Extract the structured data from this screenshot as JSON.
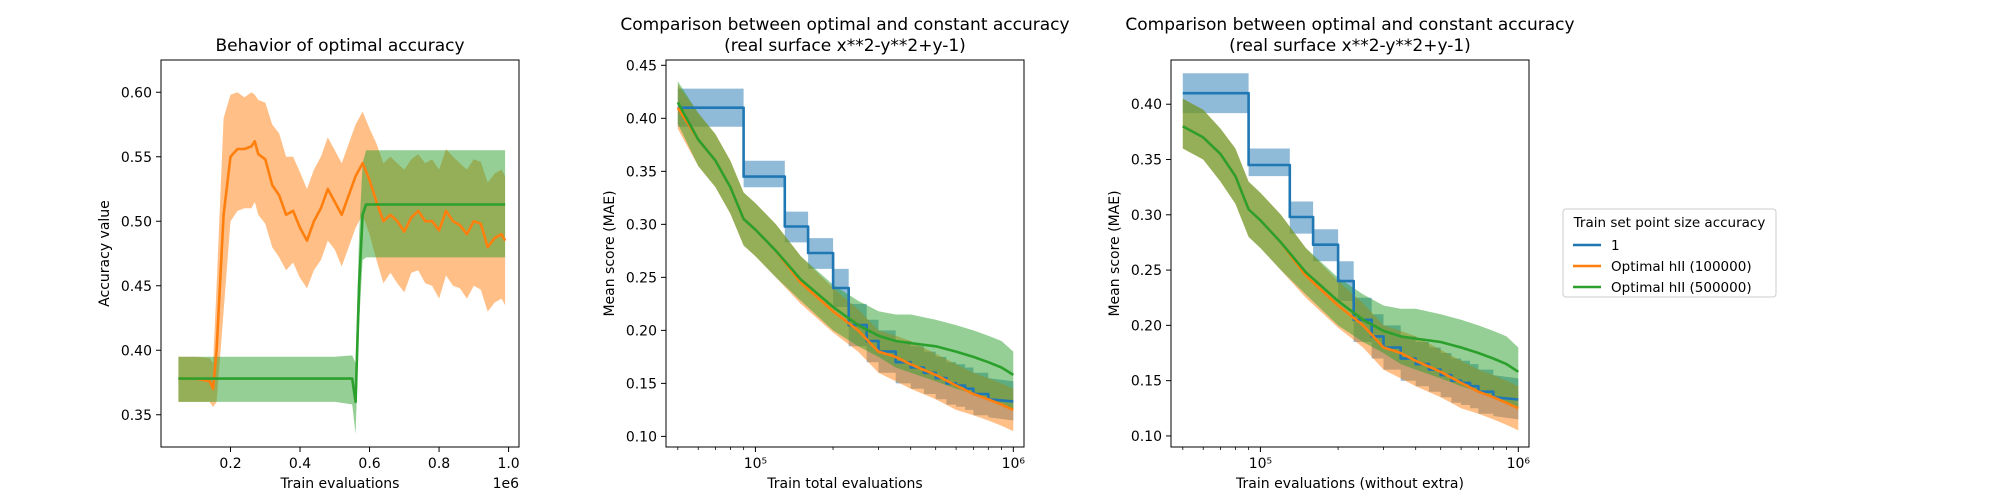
{
  "colors": {
    "series1": "#1f77b4",
    "series2": "#ff7f0e",
    "series3": "#2ca02c"
  },
  "legend": {
    "title": "Train set point size accuracy",
    "entries": [
      "1",
      "Optimal hII (100000)",
      "Optimal hII (500000)"
    ],
    "placement": "right of figure"
  },
  "chart_data": [
    {
      "type": "line",
      "title": "Behavior of optimal accuracy",
      "xlabel": "Train evaluations",
      "ylabel": "Accuracy value",
      "x_offset_label": "1e6",
      "x_scale": "linear",
      "xlim": [
        0.0,
        1.03
      ],
      "ylim": [
        0.325,
        0.625
      ],
      "x_ticks": [
        0.2,
        0.4,
        0.6,
        0.8,
        1.0
      ],
      "x_tick_labels": [
        "0.2",
        "0.4",
        "0.6",
        "0.8",
        "1.0"
      ],
      "y_ticks": [
        0.35,
        0.4,
        0.45,
        0.5,
        0.55,
        0.6
      ],
      "y_tick_labels": [
        "0.35",
        "0.40",
        "0.45",
        "0.50",
        "0.55",
        "0.60"
      ],
      "series": [
        {
          "name": "Optimal hII (100000)",
          "color": "#ff7f0e",
          "x": [
            0.05,
            0.1,
            0.14,
            0.15,
            0.16,
            0.18,
            0.2,
            0.22,
            0.24,
            0.26,
            0.27,
            0.28,
            0.3,
            0.32,
            0.34,
            0.36,
            0.38,
            0.4,
            0.42,
            0.44,
            0.46,
            0.48,
            0.5,
            0.52,
            0.54,
            0.56,
            0.58,
            0.6,
            0.62,
            0.64,
            0.66,
            0.68,
            0.7,
            0.72,
            0.74,
            0.76,
            0.78,
            0.8,
            0.82,
            0.84,
            0.86,
            0.88,
            0.9,
            0.92,
            0.94,
            0.96,
            0.98,
            0.99
          ],
          "y": [
            0.378,
            0.378,
            0.376,
            0.37,
            0.4,
            0.505,
            0.55,
            0.556,
            0.556,
            0.558,
            0.562,
            0.552,
            0.548,
            0.528,
            0.52,
            0.505,
            0.508,
            0.495,
            0.485,
            0.5,
            0.51,
            0.525,
            0.515,
            0.505,
            0.52,
            0.535,
            0.545,
            0.532,
            0.515,
            0.5,
            0.505,
            0.5,
            0.492,
            0.503,
            0.508,
            0.5,
            0.5,
            0.493,
            0.508,
            0.5,
            0.497,
            0.49,
            0.5,
            0.498,
            0.48,
            0.487,
            0.49,
            0.485
          ],
          "lower": [
            0.36,
            0.36,
            0.36,
            0.356,
            0.36,
            0.43,
            0.5,
            0.508,
            0.51,
            0.51,
            0.515,
            0.505,
            0.498,
            0.48,
            0.472,
            0.462,
            0.468,
            0.456,
            0.448,
            0.462,
            0.47,
            0.485,
            0.478,
            0.465,
            0.48,
            0.495,
            0.505,
            0.49,
            0.47,
            0.452,
            0.46,
            0.452,
            0.445,
            0.46,
            0.462,
            0.452,
            0.45,
            0.44,
            0.458,
            0.45,
            0.448,
            0.44,
            0.45,
            0.447,
            0.43,
            0.437,
            0.44,
            0.435
          ],
          "upper": [
            0.395,
            0.395,
            0.394,
            0.39,
            0.45,
            0.58,
            0.598,
            0.6,
            0.596,
            0.6,
            0.598,
            0.594,
            0.592,
            0.575,
            0.568,
            0.55,
            0.55,
            0.538,
            0.525,
            0.54,
            0.55,
            0.565,
            0.555,
            0.545,
            0.56,
            0.575,
            0.585,
            0.572,
            0.56,
            0.545,
            0.55,
            0.545,
            0.54,
            0.548,
            0.552,
            0.545,
            0.548,
            0.54,
            0.556,
            0.55,
            0.545,
            0.54,
            0.548,
            0.546,
            0.53,
            0.537,
            0.54,
            0.535
          ]
        },
        {
          "name": "Optimal hII (500000)",
          "color": "#2ca02c",
          "x": [
            0.05,
            0.1,
            0.2,
            0.3,
            0.4,
            0.5,
            0.55,
            0.56,
            0.57,
            0.58,
            0.59,
            0.6,
            0.7,
            0.8,
            0.9,
            0.99
          ],
          "y": [
            0.378,
            0.378,
            0.378,
            0.378,
            0.378,
            0.378,
            0.378,
            0.36,
            0.45,
            0.505,
            0.513,
            0.513,
            0.513,
            0.513,
            0.513,
            0.513
          ],
          "lower": [
            0.36,
            0.36,
            0.36,
            0.36,
            0.36,
            0.36,
            0.358,
            0.335,
            0.42,
            0.47,
            0.472,
            0.472,
            0.472,
            0.472,
            0.472,
            0.472
          ],
          "upper": [
            0.395,
            0.395,
            0.395,
            0.395,
            0.395,
            0.395,
            0.396,
            0.39,
            0.49,
            0.545,
            0.555,
            0.555,
            0.555,
            0.555,
            0.555,
            0.555
          ]
        }
      ]
    },
    {
      "type": "line",
      "title": "Comparison between optimal and constant accuracy\n(real surface x**2-y**2+y-1)",
      "xlabel": "Train total evaluations",
      "ylabel": "Mean score (MAE)",
      "x_scale": "log",
      "xlim": [
        45000,
        1100000
      ],
      "ylim": [
        0.09,
        0.455
      ],
      "x_ticks": [
        100000,
        1000000
      ],
      "x_tick_labels": [
        "10⁵",
        "10⁶"
      ],
      "y_ticks": [
        0.1,
        0.15,
        0.2,
        0.25,
        0.3,
        0.35,
        0.4,
        0.45
      ],
      "y_tick_labels": [
        "0.10",
        "0.15",
        "0.20",
        "0.25",
        "0.30",
        "0.35",
        "0.40",
        "0.45"
      ],
      "series": [
        {
          "name": "1",
          "color": "#1f77b4",
          "x": [
            50000,
            90000,
            90000,
            130000,
            130000,
            160000,
            160000,
            200000,
            200000,
            230000,
            230000,
            270000,
            270000,
            300000,
            300000,
            350000,
            350000,
            400000,
            400000,
            450000,
            450000,
            500000,
            500000,
            550000,
            550000,
            600000,
            600000,
            650000,
            650000,
            700000,
            700000,
            800000,
            800000,
            1000000
          ],
          "y": [
            0.41,
            0.41,
            0.345,
            0.345,
            0.298,
            0.298,
            0.273,
            0.273,
            0.24,
            0.24,
            0.205,
            0.205,
            0.19,
            0.19,
            0.18,
            0.18,
            0.17,
            0.17,
            0.165,
            0.165,
            0.16,
            0.16,
            0.155,
            0.155,
            0.15,
            0.15,
            0.148,
            0.148,
            0.145,
            0.145,
            0.14,
            0.14,
            0.135,
            0.133
          ],
          "lower": [
            0.392,
            0.392,
            0.335,
            0.335,
            0.283,
            0.283,
            0.258,
            0.258,
            0.222,
            0.222,
            0.185,
            0.185,
            0.17,
            0.17,
            0.16,
            0.16,
            0.15,
            0.15,
            0.145,
            0.145,
            0.14,
            0.14,
            0.135,
            0.135,
            0.13,
            0.13,
            0.128,
            0.128,
            0.125,
            0.125,
            0.12,
            0.12,
            0.118,
            0.115
          ],
          "upper": [
            0.428,
            0.428,
            0.36,
            0.36,
            0.312,
            0.312,
            0.287,
            0.287,
            0.258,
            0.258,
            0.225,
            0.225,
            0.21,
            0.21,
            0.2,
            0.2,
            0.19,
            0.19,
            0.185,
            0.185,
            0.18,
            0.18,
            0.175,
            0.175,
            0.17,
            0.17,
            0.168,
            0.168,
            0.165,
            0.165,
            0.16,
            0.16,
            0.155,
            0.152
          ]
        },
        {
          "name": "Optimal hII (100000)",
          "color": "#ff7f0e",
          "x": [
            50000,
            60000,
            70000,
            80000,
            90000,
            100000,
            120000,
            150000,
            200000,
            250000,
            300000,
            350000,
            400000,
            500000,
            600000,
            700000,
            800000,
            900000,
            1000000
          ],
          "y": [
            0.41,
            0.38,
            0.36,
            0.335,
            0.305,
            0.295,
            0.275,
            0.245,
            0.218,
            0.2,
            0.18,
            0.175,
            0.168,
            0.158,
            0.148,
            0.14,
            0.135,
            0.13,
            0.125
          ],
          "lower": [
            0.39,
            0.355,
            0.335,
            0.31,
            0.28,
            0.27,
            0.25,
            0.225,
            0.198,
            0.18,
            0.16,
            0.152,
            0.145,
            0.135,
            0.125,
            0.12,
            0.115,
            0.11,
            0.105
          ],
          "upper": [
            0.432,
            0.405,
            0.385,
            0.36,
            0.33,
            0.32,
            0.3,
            0.27,
            0.24,
            0.22,
            0.2,
            0.195,
            0.19,
            0.178,
            0.168,
            0.16,
            0.155,
            0.15,
            0.145
          ]
        },
        {
          "name": "Optimal hII (500000)",
          "color": "#2ca02c",
          "x": [
            50000,
            60000,
            70000,
            80000,
            90000,
            100000,
            120000,
            150000,
            200000,
            250000,
            300000,
            350000,
            400000,
            500000,
            600000,
            700000,
            800000,
            900000,
            1000000
          ],
          "y": [
            0.415,
            0.38,
            0.36,
            0.335,
            0.305,
            0.295,
            0.275,
            0.248,
            0.222,
            0.205,
            0.195,
            0.19,
            0.188,
            0.185,
            0.18,
            0.175,
            0.17,
            0.165,
            0.158
          ],
          "lower": [
            0.395,
            0.355,
            0.335,
            0.31,
            0.28,
            0.27,
            0.25,
            0.228,
            0.2,
            0.185,
            0.175,
            0.165,
            0.16,
            0.152,
            0.145,
            0.14,
            0.135,
            0.13,
            0.125
          ],
          "upper": [
            0.435,
            0.405,
            0.385,
            0.36,
            0.33,
            0.32,
            0.3,
            0.27,
            0.243,
            0.228,
            0.218,
            0.215,
            0.215,
            0.21,
            0.205,
            0.2,
            0.195,
            0.19,
            0.18
          ]
        }
      ]
    },
    {
      "type": "line",
      "title": "Comparison between optimal and constant accuracy\n(real surface x**2-y**2+y-1)",
      "xlabel": "Train evaluations (without extra)",
      "ylabel": "Mean score (MAE)",
      "x_scale": "log",
      "xlim": [
        45000,
        1100000
      ],
      "ylim": [
        0.09,
        0.44
      ],
      "x_ticks": [
        100000,
        1000000
      ],
      "x_tick_labels": [
        "10⁵",
        "10⁶"
      ],
      "y_ticks": [
        0.1,
        0.15,
        0.2,
        0.25,
        0.3,
        0.35,
        0.4
      ],
      "y_tick_labels": [
        "0.10",
        "0.15",
        "0.20",
        "0.25",
        "0.30",
        "0.35",
        "0.40"
      ],
      "series": [
        {
          "name": "1",
          "color": "#1f77b4",
          "x": [
            50000,
            90000,
            90000,
            130000,
            130000,
            160000,
            160000,
            200000,
            200000,
            230000,
            230000,
            270000,
            270000,
            300000,
            300000,
            350000,
            350000,
            400000,
            400000,
            450000,
            450000,
            500000,
            500000,
            550000,
            550000,
            600000,
            600000,
            650000,
            650000,
            700000,
            700000,
            800000,
            800000,
            1000000
          ],
          "y": [
            0.41,
            0.41,
            0.345,
            0.345,
            0.298,
            0.298,
            0.273,
            0.273,
            0.24,
            0.24,
            0.205,
            0.205,
            0.19,
            0.19,
            0.18,
            0.18,
            0.17,
            0.17,
            0.165,
            0.165,
            0.16,
            0.16,
            0.155,
            0.155,
            0.15,
            0.15,
            0.148,
            0.148,
            0.145,
            0.145,
            0.14,
            0.14,
            0.135,
            0.133
          ],
          "lower": [
            0.392,
            0.392,
            0.335,
            0.335,
            0.283,
            0.283,
            0.258,
            0.258,
            0.222,
            0.222,
            0.185,
            0.185,
            0.17,
            0.17,
            0.16,
            0.16,
            0.15,
            0.15,
            0.145,
            0.145,
            0.14,
            0.14,
            0.135,
            0.135,
            0.13,
            0.13,
            0.128,
            0.128,
            0.125,
            0.125,
            0.12,
            0.12,
            0.118,
            0.115
          ],
          "upper": [
            0.428,
            0.428,
            0.36,
            0.36,
            0.312,
            0.312,
            0.287,
            0.287,
            0.258,
            0.258,
            0.225,
            0.225,
            0.21,
            0.21,
            0.2,
            0.2,
            0.19,
            0.19,
            0.185,
            0.185,
            0.18,
            0.18,
            0.175,
            0.175,
            0.17,
            0.17,
            0.168,
            0.168,
            0.165,
            0.165,
            0.16,
            0.16,
            0.155,
            0.152
          ]
        },
        {
          "name": "Optimal hII (100000)",
          "color": "#ff7f0e",
          "x": [
            50000,
            60000,
            70000,
            80000,
            90000,
            100000,
            120000,
            150000,
            200000,
            250000,
            300000,
            350000,
            400000,
            500000,
            600000,
            700000,
            800000,
            900000,
            1000000
          ],
          "y": [
            0.38,
            0.37,
            0.355,
            0.335,
            0.305,
            0.295,
            0.275,
            0.245,
            0.218,
            0.2,
            0.18,
            0.175,
            0.168,
            0.158,
            0.148,
            0.14,
            0.135,
            0.13,
            0.125
          ],
          "lower": [
            0.36,
            0.35,
            0.33,
            0.31,
            0.28,
            0.27,
            0.25,
            0.225,
            0.198,
            0.18,
            0.16,
            0.152,
            0.145,
            0.135,
            0.125,
            0.12,
            0.115,
            0.11,
            0.105
          ],
          "upper": [
            0.405,
            0.395,
            0.378,
            0.36,
            0.33,
            0.32,
            0.3,
            0.27,
            0.24,
            0.22,
            0.2,
            0.195,
            0.19,
            0.178,
            0.168,
            0.16,
            0.155,
            0.15,
            0.145
          ]
        },
        {
          "name": "Optimal hII (500000)",
          "color": "#2ca02c",
          "x": [
            50000,
            60000,
            70000,
            80000,
            90000,
            100000,
            120000,
            150000,
            200000,
            250000,
            300000,
            350000,
            400000,
            500000,
            600000,
            700000,
            800000,
            900000,
            1000000
          ],
          "y": [
            0.38,
            0.37,
            0.355,
            0.335,
            0.305,
            0.295,
            0.275,
            0.248,
            0.222,
            0.205,
            0.195,
            0.19,
            0.188,
            0.185,
            0.18,
            0.175,
            0.17,
            0.165,
            0.158
          ],
          "lower": [
            0.36,
            0.35,
            0.33,
            0.31,
            0.28,
            0.27,
            0.25,
            0.228,
            0.2,
            0.185,
            0.175,
            0.165,
            0.16,
            0.152,
            0.145,
            0.14,
            0.135,
            0.13,
            0.125
          ],
          "upper": [
            0.405,
            0.395,
            0.378,
            0.36,
            0.33,
            0.32,
            0.3,
            0.27,
            0.243,
            0.228,
            0.218,
            0.215,
            0.215,
            0.21,
            0.205,
            0.2,
            0.195,
            0.19,
            0.18
          ]
        }
      ]
    }
  ]
}
